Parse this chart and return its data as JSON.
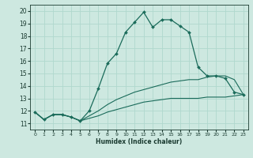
{
  "xlabel": "Humidex (Indice chaleur)",
  "xlim": [
    -0.5,
    23.5
  ],
  "ylim": [
    10.5,
    20.5
  ],
  "yticks": [
    11,
    12,
    13,
    14,
    15,
    16,
    17,
    18,
    19,
    20
  ],
  "xticks": [
    0,
    1,
    2,
    3,
    4,
    5,
    6,
    7,
    8,
    9,
    10,
    11,
    12,
    13,
    14,
    15,
    16,
    17,
    18,
    19,
    20,
    21,
    22,
    23
  ],
  "bg_color": "#cde8e0",
  "line_color": "#1a6b5a",
  "grid_color": "#b0d8ce",
  "series_main": {
    "x": [
      0,
      1,
      2,
      3,
      4,
      5,
      6,
      7,
      8,
      9,
      10,
      11,
      12,
      13,
      14,
      15,
      16,
      17,
      18,
      19,
      20,
      21,
      22,
      23
    ],
    "y": [
      11.9,
      11.3,
      11.7,
      11.7,
      11.5,
      11.2,
      12.0,
      13.8,
      15.8,
      16.6,
      18.3,
      19.1,
      19.9,
      18.7,
      19.3,
      19.3,
      18.8,
      18.3,
      15.5,
      14.8,
      14.8,
      14.6,
      13.5,
      13.3
    ]
  },
  "series_upper": {
    "x": [
      0,
      1,
      2,
      3,
      4,
      5,
      6,
      7,
      8,
      9,
      10,
      11,
      12,
      13,
      14,
      15,
      16,
      17,
      18,
      19,
      20,
      21,
      22,
      23
    ],
    "y": [
      11.9,
      11.3,
      11.7,
      11.7,
      11.5,
      11.2,
      11.6,
      12.0,
      12.5,
      12.9,
      13.2,
      13.5,
      13.7,
      13.9,
      14.1,
      14.3,
      14.4,
      14.5,
      14.5,
      14.7,
      14.8,
      14.8,
      14.5,
      13.3
    ]
  },
  "series_lower": {
    "x": [
      0,
      1,
      2,
      3,
      4,
      5,
      6,
      7,
      8,
      9,
      10,
      11,
      12,
      13,
      14,
      15,
      16,
      17,
      18,
      19,
      20,
      21,
      22,
      23
    ],
    "y": [
      11.9,
      11.3,
      11.7,
      11.7,
      11.5,
      11.2,
      11.4,
      11.6,
      11.9,
      12.1,
      12.3,
      12.5,
      12.7,
      12.8,
      12.9,
      13.0,
      13.0,
      13.0,
      13.0,
      13.1,
      13.1,
      13.1,
      13.2,
      13.3
    ]
  }
}
